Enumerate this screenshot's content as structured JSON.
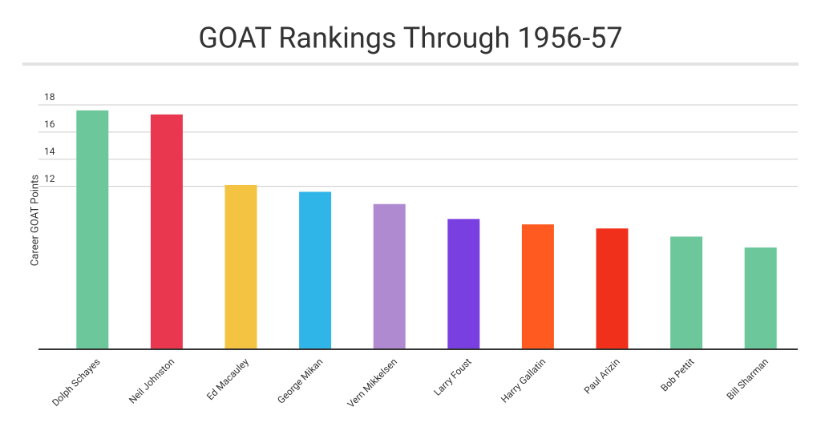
{
  "chart_data": {
    "type": "bar",
    "title": "GOAT Rankings Through 1956-57",
    "y_label": "Career GOAT Points",
    "categories": [
      "Dolph Schayes",
      "Neil Johnston",
      "Ed Macauley",
      "George Mikan",
      "Vern Mikkelsen",
      "Larry Foust",
      "Harry Gallatin",
      "Paul Arizin",
      "Bob Pettit",
      "Bill Sharman"
    ],
    "values": [
      17.6,
      17.3,
      12.1,
      11.6,
      10.7,
      9.6,
      9.2,
      8.9,
      8.3,
      7.5
    ],
    "colors": [
      "#6cc79a",
      "#e8374f",
      "#f5c342",
      "#2fb5e8",
      "#b08ad0",
      "#7a3fe0",
      "#ff5a1f",
      "#f0301a",
      "#6cc79a",
      "#6cc79a"
    ],
    "ylim": [
      0,
      18
    ],
    "yticks": [
      12,
      14,
      16,
      18
    ],
    "grid": true
  }
}
